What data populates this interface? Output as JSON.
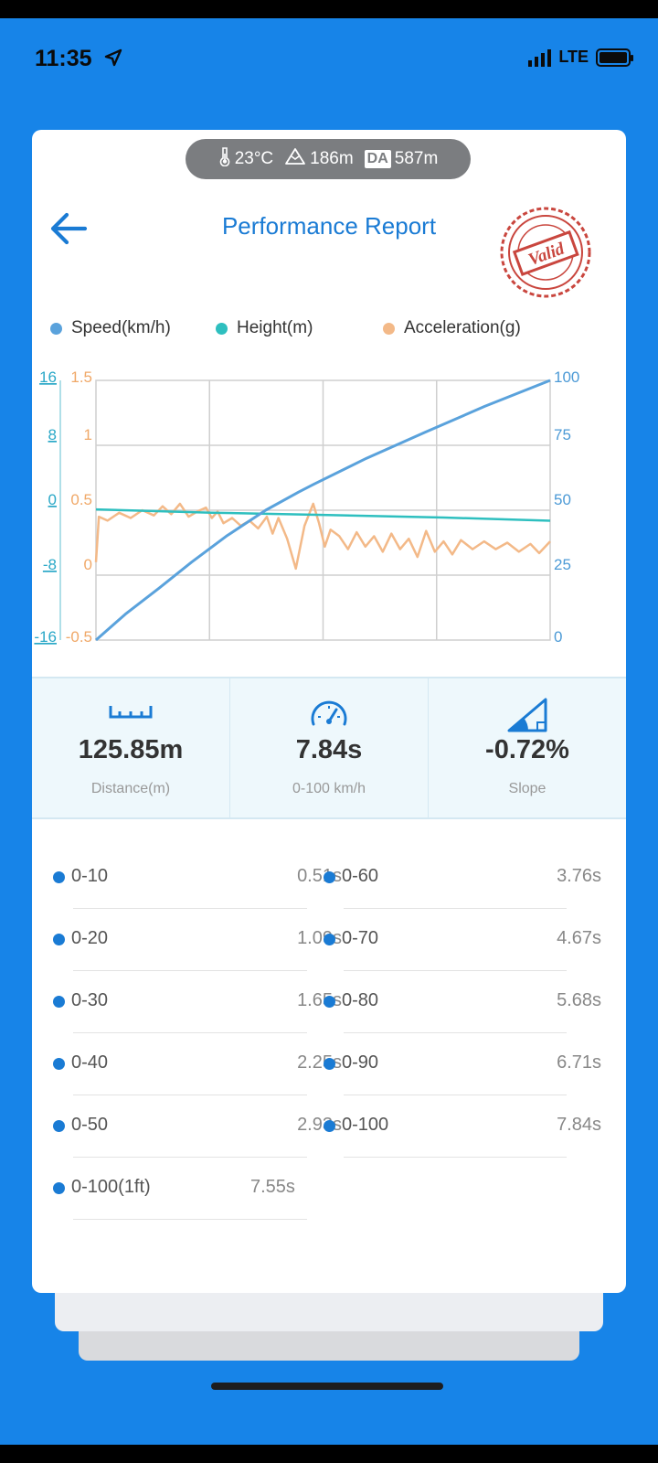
{
  "status_bar": {
    "time": "11:35",
    "network": "LTE"
  },
  "weather": {
    "temperature": "23°C",
    "altitude": "186m",
    "da_label": "DA",
    "density_altitude": "587m"
  },
  "header": {
    "title": "Performance Report",
    "stamp_text": "Valid"
  },
  "legend": [
    {
      "name": "Speed(km/h)",
      "color": "#5aa2dc"
    },
    {
      "name": "Height(m)",
      "color": "#2ebfbf"
    },
    {
      "name": "Acceleration(g)",
      "color": "#f3b988"
    }
  ],
  "chart_data": {
    "type": "line",
    "y_axis_height": {
      "ticks": [
        "16",
        "8",
        "0",
        "-8",
        "-16"
      ],
      "range": [
        -16,
        16
      ],
      "color": "#2ebfbf"
    },
    "y_axis_accel": {
      "ticks": [
        "1.5",
        "1",
        "0.5",
        "0",
        "-0.5"
      ],
      "range": [
        -0.5,
        1.5
      ],
      "color": "#f3b988"
    },
    "y_axis_speed": {
      "ticks": [
        "100",
        "75",
        "50",
        "25",
        "0"
      ],
      "range": [
        0,
        100
      ],
      "color": "#5aa2dc"
    },
    "x_range": [
      0,
      7.84
    ],
    "grid": true,
    "series": [
      {
        "name": "Speed(km/h)",
        "color": "#5aa2dc",
        "points": [
          [
            0,
            0
          ],
          [
            0.51,
            10
          ],
          [
            1.09,
            20
          ],
          [
            1.65,
            30
          ],
          [
            2.25,
            40
          ],
          [
            2.93,
            50
          ],
          [
            3.5,
            57
          ],
          [
            3.76,
            60
          ],
          [
            4.67,
            70
          ],
          [
            5.68,
            80
          ],
          [
            6.71,
            90
          ],
          [
            7.84,
            100
          ]
        ]
      },
      {
        "name": "Height(m)",
        "color": "#2ebfbf",
        "points": [
          [
            0,
            0.1
          ],
          [
            2,
            -0.3
          ],
          [
            4,
            -0.6
          ],
          [
            6,
            -0.9
          ],
          [
            7.84,
            -1.3
          ]
        ]
      },
      {
        "name": "Acceleration(g)",
        "color": "#f3b988",
        "points": [
          [
            0,
            0.1
          ],
          [
            0.05,
            0.45
          ],
          [
            0.2,
            0.42
          ],
          [
            0.4,
            0.48
          ],
          [
            0.6,
            0.44
          ],
          [
            0.8,
            0.5
          ],
          [
            1.0,
            0.46
          ],
          [
            1.15,
            0.53
          ],
          [
            1.3,
            0.47
          ],
          [
            1.45,
            0.55
          ],
          [
            1.6,
            0.45
          ],
          [
            1.75,
            0.49
          ],
          [
            1.9,
            0.52
          ],
          [
            2.0,
            0.44
          ],
          [
            2.1,
            0.49
          ],
          [
            2.2,
            0.4
          ],
          [
            2.35,
            0.44
          ],
          [
            2.5,
            0.38
          ],
          [
            2.65,
            0.42
          ],
          [
            2.8,
            0.36
          ],
          [
            2.95,
            0.45
          ],
          [
            3.05,
            0.32
          ],
          [
            3.15,
            0.44
          ],
          [
            3.3,
            0.28
          ],
          [
            3.45,
            0.05
          ],
          [
            3.6,
            0.38
          ],
          [
            3.75,
            0.55
          ],
          [
            3.85,
            0.4
          ],
          [
            3.95,
            0.22
          ],
          [
            4.05,
            0.35
          ],
          [
            4.2,
            0.3
          ],
          [
            4.35,
            0.2
          ],
          [
            4.5,
            0.33
          ],
          [
            4.65,
            0.22
          ],
          [
            4.8,
            0.3
          ],
          [
            4.95,
            0.18
          ],
          [
            5.1,
            0.32
          ],
          [
            5.25,
            0.2
          ],
          [
            5.4,
            0.28
          ],
          [
            5.55,
            0.14
          ],
          [
            5.7,
            0.34
          ],
          [
            5.85,
            0.18
          ],
          [
            6.0,
            0.26
          ],
          [
            6.15,
            0.16
          ],
          [
            6.3,
            0.27
          ],
          [
            6.5,
            0.2
          ],
          [
            6.7,
            0.26
          ],
          [
            6.9,
            0.2
          ],
          [
            7.1,
            0.25
          ],
          [
            7.3,
            0.18
          ],
          [
            7.5,
            0.24
          ],
          [
            7.65,
            0.17
          ],
          [
            7.84,
            0.26
          ]
        ]
      }
    ]
  },
  "stats": [
    {
      "value": "125.85m",
      "label": "Distance(m)",
      "icon": "ruler-icon"
    },
    {
      "value": "7.84s",
      "label": "0-100 km/h",
      "icon": "speedometer-icon"
    },
    {
      "value": "-0.72%",
      "label": "Slope",
      "icon": "slope-icon"
    }
  ],
  "splits": [
    {
      "name": "0-10",
      "time": "0.51s"
    },
    {
      "name": "0-60",
      "time": "3.76s"
    },
    {
      "name": "0-20",
      "time": "1.09s"
    },
    {
      "name": "0-70",
      "time": "4.67s"
    },
    {
      "name": "0-30",
      "time": "1.65s"
    },
    {
      "name": "0-80",
      "time": "5.68s"
    },
    {
      "name": "0-40",
      "time": "2.25s"
    },
    {
      "name": "0-90",
      "time": "6.71s"
    },
    {
      "name": "0-50",
      "time": "2.93s"
    },
    {
      "name": "0-100",
      "time": "7.84s"
    },
    {
      "name": "0-100(1ft)",
      "time": "7.55s"
    }
  ]
}
